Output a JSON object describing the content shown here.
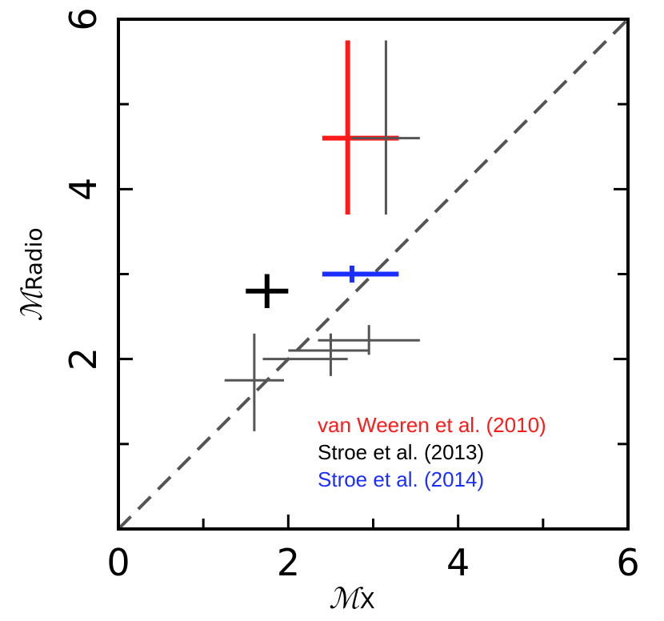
{
  "chart_data": {
    "type": "scatter",
    "xlabel": {
      "main": "ℳ",
      "sub": "X"
    },
    "ylabel": {
      "main": "ℳ",
      "sub": "Radio"
    },
    "xlim": [
      0,
      6
    ],
    "ylim": [
      0,
      6
    ],
    "x_ticks": [
      0,
      2,
      4,
      6
    ],
    "x_minor_ticks": [
      1,
      3,
      5
    ],
    "y_ticks": [
      2,
      4,
      6
    ],
    "y_minor_ticks": [
      1,
      3,
      5
    ],
    "grid": false,
    "reference_line": {
      "style": "dashed",
      "from": [
        0,
        0
      ],
      "to": [
        6,
        6
      ],
      "color": "#555555"
    },
    "legend": {
      "placement": "bottom-right",
      "entries": [
        {
          "label": "van Weeren et al. (2010)",
          "color": "#ff1a1a"
        },
        {
          "label": "Stroe et al. (2013)",
          "color": "#000000"
        },
        {
          "label": "Stroe et al. (2014)",
          "color": "#1a2eff"
        }
      ]
    },
    "series": [
      {
        "color": "#ff1a1a",
        "style": "thick",
        "points": [
          {
            "x": 2.7,
            "y": 4.6,
            "xlo": 2.4,
            "xhi": 3.3,
            "ylo": 3.7,
            "yhi": 5.75
          }
        ]
      },
      {
        "color": "#555555",
        "style": "thin",
        "points": [
          {
            "x": 3.15,
            "y": 4.6,
            "xlo": 2.75,
            "xhi": 3.55,
            "ylo": 3.7,
            "yhi": 5.75
          },
          {
            "x": 1.6,
            "y": 1.75,
            "xlo": 1.25,
            "xhi": 1.95,
            "ylo": 1.15,
            "yhi": 2.3
          },
          {
            "x": 2.5,
            "y": 2.0,
            "xlo": 1.7,
            "xhi": 2.7,
            "ylo": 1.8,
            "yhi": 2.3
          },
          {
            "x": 2.5,
            "y": 2.22,
            "xlo": 2.35,
            "xhi": 3.55,
            "ylo": 2.15,
            "yhi": 2.3
          },
          {
            "x": 2.95,
            "y": 2.1,
            "xlo": 2.0,
            "xhi": 2.95,
            "ylo": 2.05,
            "yhi": 2.4
          }
        ]
      },
      {
        "color": "#000000",
        "style": "thick",
        "points": [
          {
            "x": 1.75,
            "y": 2.8,
            "xlo": 1.5,
            "xhi": 2.0,
            "ylo": 2.6,
            "yhi": 3.0
          }
        ]
      },
      {
        "color": "#1a2eff",
        "style": "thick",
        "points": [
          {
            "x": 2.75,
            "y": 3.0,
            "xlo": 2.4,
            "xhi": 3.3,
            "ylo": 2.9,
            "yhi": 3.1
          }
        ]
      }
    ]
  }
}
